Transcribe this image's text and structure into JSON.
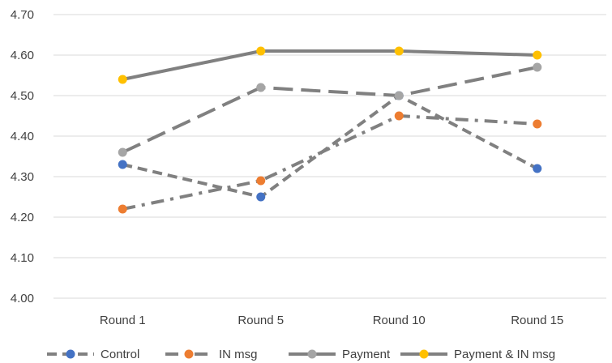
{
  "chart_data": {
    "type": "line",
    "categories": [
      "Round 1",
      "Round 5",
      "Round 10",
      "Round 15"
    ],
    "ylim": [
      4.0,
      4.7
    ],
    "yticks": [
      "4.00",
      "4.10",
      "4.20",
      "4.30",
      "4.40",
      "4.50",
      "4.60",
      "4.70"
    ],
    "grid": true,
    "legend_position": "bottom",
    "series": [
      {
        "name": "Control",
        "values": [
          4.33,
          4.25,
          4.5,
          4.32
        ],
        "line_color": "#808080",
        "marker_color": "#4472C4",
        "dash": "short-dash"
      },
      {
        "name": "IN msg",
        "values": [
          4.22,
          4.29,
          4.45,
          4.43
        ],
        "line_color": "#808080",
        "marker_color": "#ED7D31",
        "dash": "dash-dot"
      },
      {
        "name": "Payment",
        "values": [
          4.36,
          4.52,
          4.5,
          4.57
        ],
        "line_color": "#808080",
        "marker_color": "#A5A5A5",
        "dash": "long-dash"
      },
      {
        "name": "Payment & IN msg",
        "values": [
          4.54,
          4.61,
          4.61,
          4.6
        ],
        "line_color": "#808080",
        "marker_color": "#FFC000",
        "dash": "solid"
      }
    ]
  }
}
